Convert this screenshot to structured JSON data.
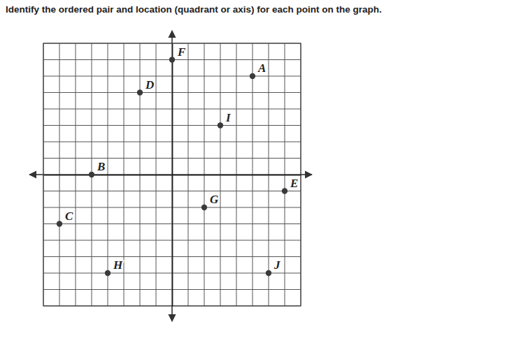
{
  "chart_data": {
    "type": "scatter",
    "title": "Identify the ordered pair and location (quadrant or axis) for each point on the graph.",
    "labels": [
      "A",
      "B",
      "C",
      "D",
      "E",
      "F",
      "G",
      "H",
      "I",
      "J"
    ],
    "x": [
      5,
      -5,
      -7,
      -2,
      7,
      0,
      2,
      -4,
      3,
      6
    ],
    "values": [
      6,
      0,
      -3,
      5,
      -1,
      7,
      -2,
      -6,
      3,
      -6
    ],
    "xlim": [
      -8,
      8
    ],
    "ylim": [
      -8,
      8
    ],
    "xticks": [
      -8,
      -7,
      -6,
      -5,
      -4,
      -3,
      -2,
      -1,
      0,
      1,
      2,
      3,
      4,
      5,
      6,
      7,
      8
    ],
    "yticks": [
      -8,
      -7,
      -6,
      -5,
      -4,
      -3,
      -2,
      -1,
      0,
      1,
      2,
      3,
      4,
      5,
      6,
      7,
      8
    ],
    "grid": true,
    "tick_labels": false,
    "color": "#3a3a3a",
    "marker": "circle"
  }
}
